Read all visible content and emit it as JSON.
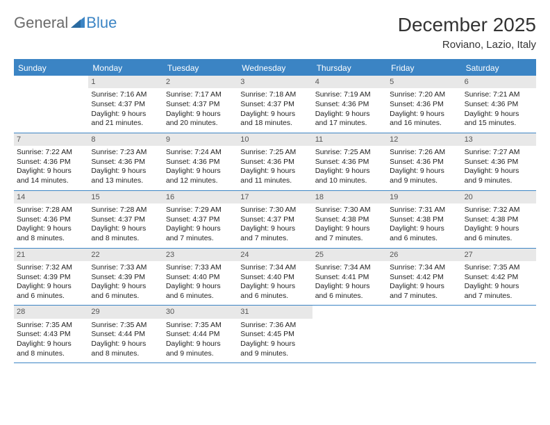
{
  "logo": {
    "general": "General",
    "blue": "Blue",
    "triangle_color": "#3b84c4"
  },
  "header": {
    "title": "December 2025",
    "location": "Roviano, Lazio, Italy",
    "title_fontsize": 28,
    "location_fontsize": 15
  },
  "dayheaders": [
    "Sunday",
    "Monday",
    "Tuesday",
    "Wednesday",
    "Thursday",
    "Friday",
    "Saturday"
  ],
  "colors": {
    "header_bg": "#3b84c4",
    "header_text": "#ffffff",
    "cell_border": "#3b84c4",
    "daynum_bg": "#e8e8e8",
    "daynum_text": "#555555",
    "body_text": "#222222",
    "logo_gray": "#6a6a6a",
    "logo_blue": "#3b84c4",
    "background": "#ffffff"
  },
  "layout": {
    "columns": 7,
    "rows": 5,
    "cell_fontsize": 10.5,
    "dayhead_fontsize": 12,
    "daynum_fontsize": 11
  },
  "cells": [
    {
      "day": "",
      "lines": []
    },
    {
      "day": "1",
      "lines": [
        "Sunrise: 7:16 AM",
        "Sunset: 4:37 PM",
        "Daylight: 9 hours",
        "and 21 minutes."
      ]
    },
    {
      "day": "2",
      "lines": [
        "Sunrise: 7:17 AM",
        "Sunset: 4:37 PM",
        "Daylight: 9 hours",
        "and 20 minutes."
      ]
    },
    {
      "day": "3",
      "lines": [
        "Sunrise: 7:18 AM",
        "Sunset: 4:37 PM",
        "Daylight: 9 hours",
        "and 18 minutes."
      ]
    },
    {
      "day": "4",
      "lines": [
        "Sunrise: 7:19 AM",
        "Sunset: 4:36 PM",
        "Daylight: 9 hours",
        "and 17 minutes."
      ]
    },
    {
      "day": "5",
      "lines": [
        "Sunrise: 7:20 AM",
        "Sunset: 4:36 PM",
        "Daylight: 9 hours",
        "and 16 minutes."
      ]
    },
    {
      "day": "6",
      "lines": [
        "Sunrise: 7:21 AM",
        "Sunset: 4:36 PM",
        "Daylight: 9 hours",
        "and 15 minutes."
      ]
    },
    {
      "day": "7",
      "lines": [
        "Sunrise: 7:22 AM",
        "Sunset: 4:36 PM",
        "Daylight: 9 hours",
        "and 14 minutes."
      ]
    },
    {
      "day": "8",
      "lines": [
        "Sunrise: 7:23 AM",
        "Sunset: 4:36 PM",
        "Daylight: 9 hours",
        "and 13 minutes."
      ]
    },
    {
      "day": "9",
      "lines": [
        "Sunrise: 7:24 AM",
        "Sunset: 4:36 PM",
        "Daylight: 9 hours",
        "and 12 minutes."
      ]
    },
    {
      "day": "10",
      "lines": [
        "Sunrise: 7:25 AM",
        "Sunset: 4:36 PM",
        "Daylight: 9 hours",
        "and 11 minutes."
      ]
    },
    {
      "day": "11",
      "lines": [
        "Sunrise: 7:25 AM",
        "Sunset: 4:36 PM",
        "Daylight: 9 hours",
        "and 10 minutes."
      ]
    },
    {
      "day": "12",
      "lines": [
        "Sunrise: 7:26 AM",
        "Sunset: 4:36 PM",
        "Daylight: 9 hours",
        "and 9 minutes."
      ]
    },
    {
      "day": "13",
      "lines": [
        "Sunrise: 7:27 AM",
        "Sunset: 4:36 PM",
        "Daylight: 9 hours",
        "and 9 minutes."
      ]
    },
    {
      "day": "14",
      "lines": [
        "Sunrise: 7:28 AM",
        "Sunset: 4:36 PM",
        "Daylight: 9 hours",
        "and 8 minutes."
      ]
    },
    {
      "day": "15",
      "lines": [
        "Sunrise: 7:28 AM",
        "Sunset: 4:37 PM",
        "Daylight: 9 hours",
        "and 8 minutes."
      ]
    },
    {
      "day": "16",
      "lines": [
        "Sunrise: 7:29 AM",
        "Sunset: 4:37 PM",
        "Daylight: 9 hours",
        "and 7 minutes."
      ]
    },
    {
      "day": "17",
      "lines": [
        "Sunrise: 7:30 AM",
        "Sunset: 4:37 PM",
        "Daylight: 9 hours",
        "and 7 minutes."
      ]
    },
    {
      "day": "18",
      "lines": [
        "Sunrise: 7:30 AM",
        "Sunset: 4:38 PM",
        "Daylight: 9 hours",
        "and 7 minutes."
      ]
    },
    {
      "day": "19",
      "lines": [
        "Sunrise: 7:31 AM",
        "Sunset: 4:38 PM",
        "Daylight: 9 hours",
        "and 6 minutes."
      ]
    },
    {
      "day": "20",
      "lines": [
        "Sunrise: 7:32 AM",
        "Sunset: 4:38 PM",
        "Daylight: 9 hours",
        "and 6 minutes."
      ]
    },
    {
      "day": "21",
      "lines": [
        "Sunrise: 7:32 AM",
        "Sunset: 4:39 PM",
        "Daylight: 9 hours",
        "and 6 minutes."
      ]
    },
    {
      "day": "22",
      "lines": [
        "Sunrise: 7:33 AM",
        "Sunset: 4:39 PM",
        "Daylight: 9 hours",
        "and 6 minutes."
      ]
    },
    {
      "day": "23",
      "lines": [
        "Sunrise: 7:33 AM",
        "Sunset: 4:40 PM",
        "Daylight: 9 hours",
        "and 6 minutes."
      ]
    },
    {
      "day": "24",
      "lines": [
        "Sunrise: 7:34 AM",
        "Sunset: 4:40 PM",
        "Daylight: 9 hours",
        "and 6 minutes."
      ]
    },
    {
      "day": "25",
      "lines": [
        "Sunrise: 7:34 AM",
        "Sunset: 4:41 PM",
        "Daylight: 9 hours",
        "and 6 minutes."
      ]
    },
    {
      "day": "26",
      "lines": [
        "Sunrise: 7:34 AM",
        "Sunset: 4:42 PM",
        "Daylight: 9 hours",
        "and 7 minutes."
      ]
    },
    {
      "day": "27",
      "lines": [
        "Sunrise: 7:35 AM",
        "Sunset: 4:42 PM",
        "Daylight: 9 hours",
        "and 7 minutes."
      ]
    },
    {
      "day": "28",
      "lines": [
        "Sunrise: 7:35 AM",
        "Sunset: 4:43 PM",
        "Daylight: 9 hours",
        "and 8 minutes."
      ]
    },
    {
      "day": "29",
      "lines": [
        "Sunrise: 7:35 AM",
        "Sunset: 4:44 PM",
        "Daylight: 9 hours",
        "and 8 minutes."
      ]
    },
    {
      "day": "30",
      "lines": [
        "Sunrise: 7:35 AM",
        "Sunset: 4:44 PM",
        "Daylight: 9 hours",
        "and 9 minutes."
      ]
    },
    {
      "day": "31",
      "lines": [
        "Sunrise: 7:36 AM",
        "Sunset: 4:45 PM",
        "Daylight: 9 hours",
        "and 9 minutes."
      ]
    },
    {
      "day": "",
      "lines": []
    },
    {
      "day": "",
      "lines": []
    },
    {
      "day": "",
      "lines": []
    }
  ]
}
